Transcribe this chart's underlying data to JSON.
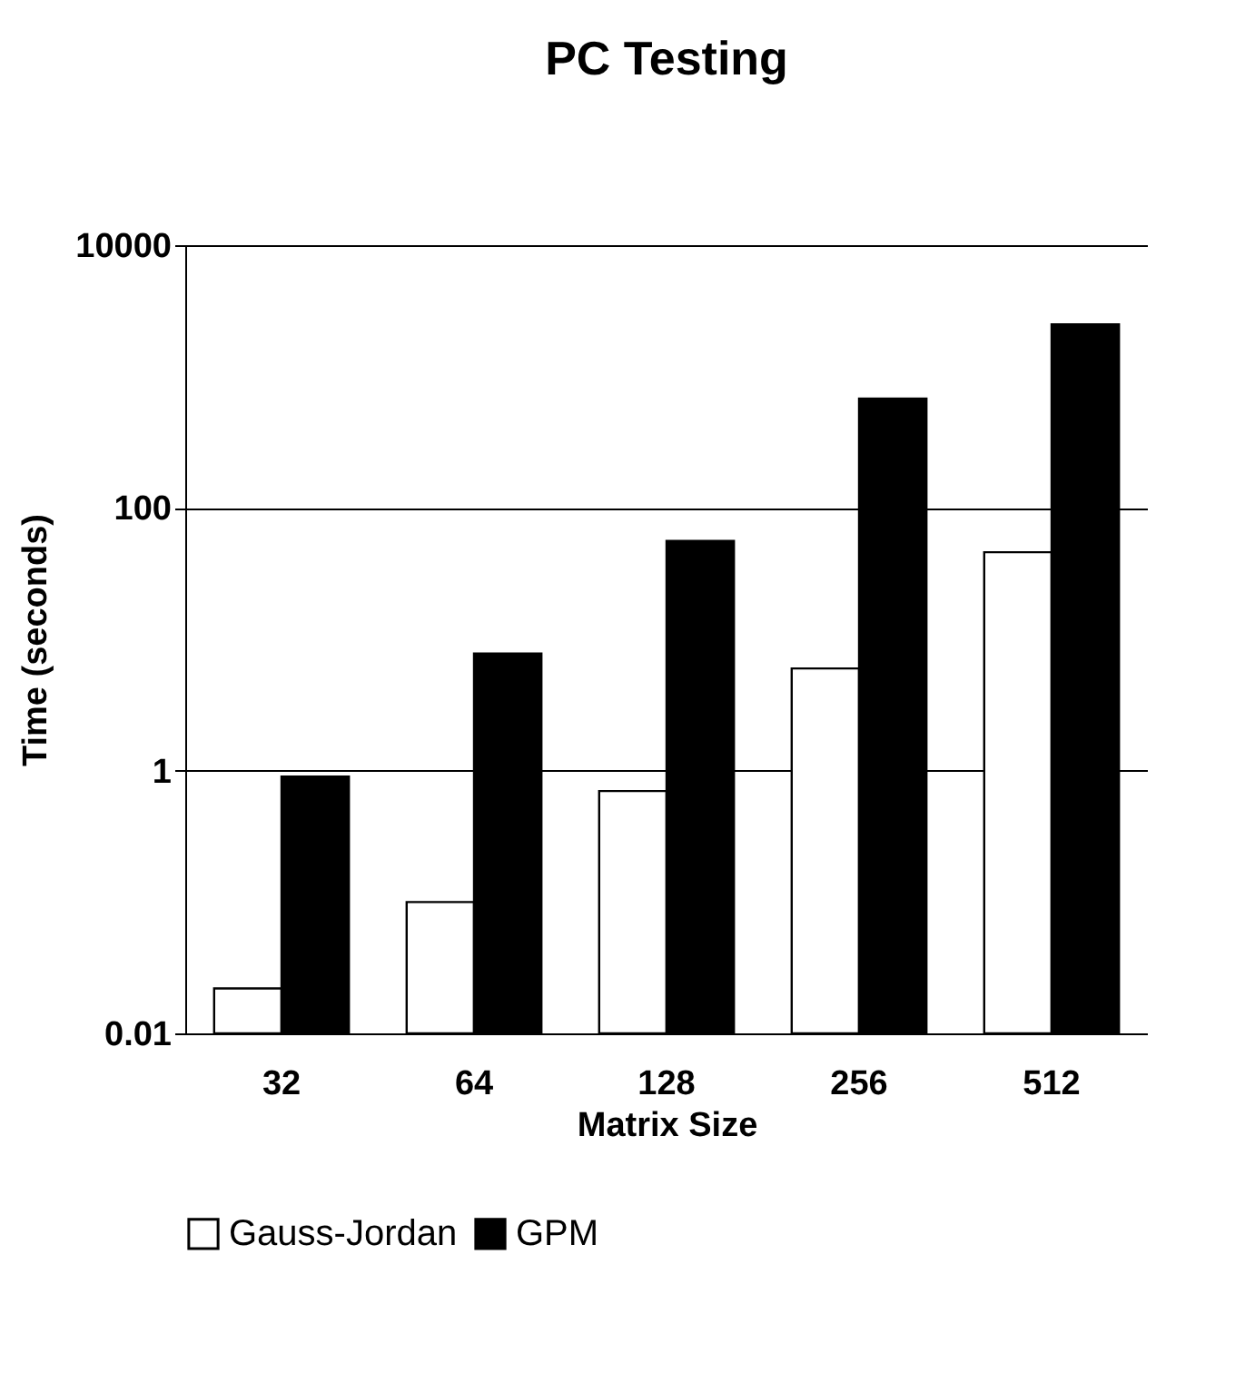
{
  "chart_data": {
    "type": "bar",
    "title": "PC Testing",
    "xlabel": "Matrix Size",
    "ylabel": "Time (seconds)",
    "categories": [
      "32",
      "64",
      "128",
      "256",
      "512"
    ],
    "series": [
      {
        "name": "Gauss-Jordan",
        "color": "#ffffff",
        "values": [
          0.022,
          0.1,
          0.7,
          6,
          46
        ]
      },
      {
        "name": "GPM",
        "color": "#000000",
        "values": [
          0.9,
          7.8,
          56,
          680,
          2500
        ]
      }
    ],
    "log": true,
    "ylim": [
      0.01,
      10000
    ],
    "yticks": [
      0.01,
      1,
      100,
      10000
    ],
    "grid": "y",
    "legend": "bottom"
  }
}
